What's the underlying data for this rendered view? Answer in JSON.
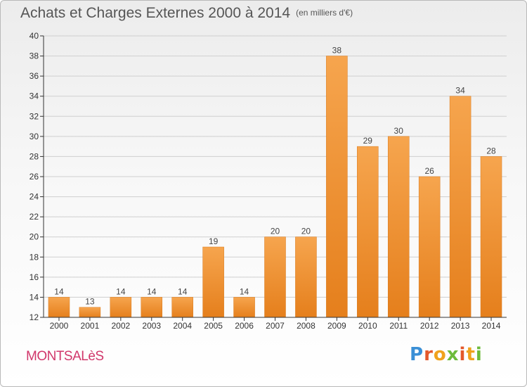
{
  "title": "Achats et Charges Externes 2000 à 2014",
  "subtitle": "(en milliers d'€)",
  "commune": "MONTSALèS",
  "logo": {
    "p": "P",
    "r": "r",
    "o": "o",
    "x": "x",
    "i1": "i",
    "t": "t",
    "i2": "i"
  },
  "colors": {
    "bar_light": "#f6a54e",
    "bar_dark": "#e57f1c",
    "axis": "#333333",
    "grid": "#cfcfcf",
    "commune": "#d1376b"
  },
  "chart_data": {
    "type": "bar",
    "categories": [
      "2000",
      "2001",
      "2002",
      "2003",
      "2004",
      "2005",
      "2006",
      "2007",
      "2008",
      "2009",
      "2010",
      "2011",
      "2012",
      "2013",
      "2014"
    ],
    "values": [
      14,
      13,
      14,
      14,
      14,
      19,
      14,
      20,
      20,
      38,
      29,
      30,
      26,
      34,
      28
    ],
    "title": "Achats et Charges Externes 2000 à 2014",
    "subtitle": "(en milliers d'€)",
    "ylim": [
      12,
      40
    ],
    "yticks": [
      12,
      14,
      16,
      18,
      20,
      22,
      24,
      26,
      28,
      30,
      32,
      34,
      36,
      38,
      40
    ],
    "grid": true,
    "data_labels": true
  }
}
